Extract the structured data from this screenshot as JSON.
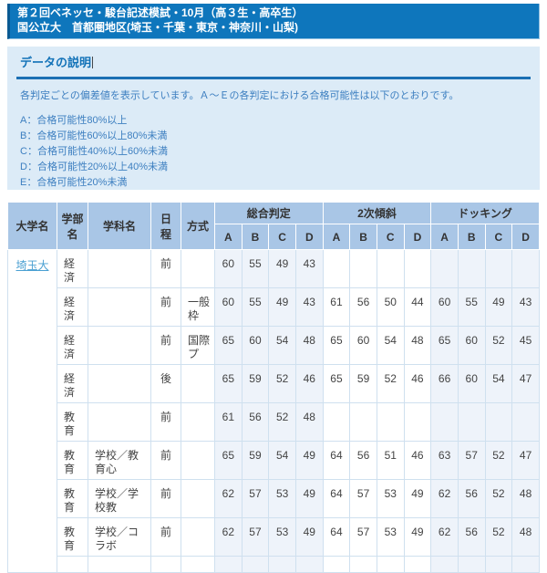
{
  "title_bar": {
    "line1": "第２回ベネッセ・駿台記述模試・10月（高３生・高卒生）",
    "line2": "国公立大　首都圏地区(埼玉・千葉・東京・神奈川・山梨)"
  },
  "explanation": {
    "title": "データの説明",
    "intro": "各判定ごとの偏差値を表示しています。Ａ～Ｅの各判定における合格可能性は以下のとおりです。",
    "grades": [
      "A：合格可能性80%以上",
      "B：合格可能性60%以上80%未満",
      "C：合格可能性40%以上60%未満",
      "D：合格可能性20%以上40%未満",
      "E：合格可能性20%未満"
    ]
  },
  "table": {
    "col_university": "大学名",
    "col_faculty": "学部\n名",
    "col_department": "学科名",
    "col_schedule": "日\n程",
    "col_method": "方式",
    "group_sogo": "総合判定",
    "group_niji": "2次傾斜",
    "group_docking": "ドッキング",
    "grade_cols": [
      "A",
      "B",
      "C",
      "D"
    ],
    "university": "埼玉大",
    "rows": [
      {
        "faculty": "経済",
        "department": "",
        "schedule": "前",
        "method": "",
        "sogo": [
          "60",
          "55",
          "49",
          "43"
        ],
        "niji": [
          "",
          "",
          "",
          ""
        ],
        "docking": [
          "",
          "",
          "",
          ""
        ]
      },
      {
        "faculty": "経済",
        "department": "",
        "schedule": "前",
        "method": "一般枠",
        "sogo": [
          "60",
          "55",
          "49",
          "43"
        ],
        "niji": [
          "61",
          "56",
          "50",
          "44"
        ],
        "docking": [
          "60",
          "55",
          "49",
          "43"
        ]
      },
      {
        "faculty": "経済",
        "department": "",
        "schedule": "前",
        "method": "国際プ",
        "sogo": [
          "65",
          "60",
          "54",
          "48"
        ],
        "niji": [
          "65",
          "60",
          "54",
          "48"
        ],
        "docking": [
          "65",
          "60",
          "52",
          "45"
        ]
      },
      {
        "faculty": "経済",
        "department": "",
        "schedule": "後",
        "method": "",
        "sogo": [
          "65",
          "59",
          "52",
          "46"
        ],
        "niji": [
          "65",
          "59",
          "52",
          "46"
        ],
        "docking": [
          "66",
          "60",
          "54",
          "47"
        ]
      },
      {
        "faculty": "教育",
        "department": "",
        "schedule": "前",
        "method": "",
        "sogo": [
          "61",
          "56",
          "52",
          "48"
        ],
        "niji": [
          "",
          "",
          "",
          ""
        ],
        "docking": [
          "",
          "",
          "",
          ""
        ]
      },
      {
        "faculty": "教育",
        "department": "学校／教育心",
        "schedule": "前",
        "method": "",
        "sogo": [
          "65",
          "59",
          "54",
          "49"
        ],
        "niji": [
          "64",
          "56",
          "51",
          "46"
        ],
        "docking": [
          "63",
          "57",
          "52",
          "47"
        ]
      },
      {
        "faculty": "教育",
        "department": "学校／学校教",
        "schedule": "前",
        "method": "",
        "sogo": [
          "62",
          "57",
          "53",
          "49"
        ],
        "niji": [
          "64",
          "57",
          "53",
          "49"
        ],
        "docking": [
          "62",
          "56",
          "52",
          "48"
        ]
      },
      {
        "faculty": "教育",
        "department": "学校／コラボ",
        "schedule": "前",
        "method": "",
        "sogo": [
          "62",
          "57",
          "53",
          "49"
        ],
        "niji": [
          "64",
          "57",
          "53",
          "49"
        ],
        "docking": [
          "62",
          "56",
          "52",
          "48"
        ]
      }
    ]
  },
  "colors": {
    "title_bar_bg": "#0e76bc",
    "panel_bg": "#dcebf7",
    "accent_blue": "#1b6fb4",
    "text_blue": "#3d7fc0",
    "table_header_bg": "#a9c6e6",
    "cell_border": "#cfe0ef",
    "tint_bg": "#eef3fa",
    "link_color": "#4aa0d2"
  }
}
